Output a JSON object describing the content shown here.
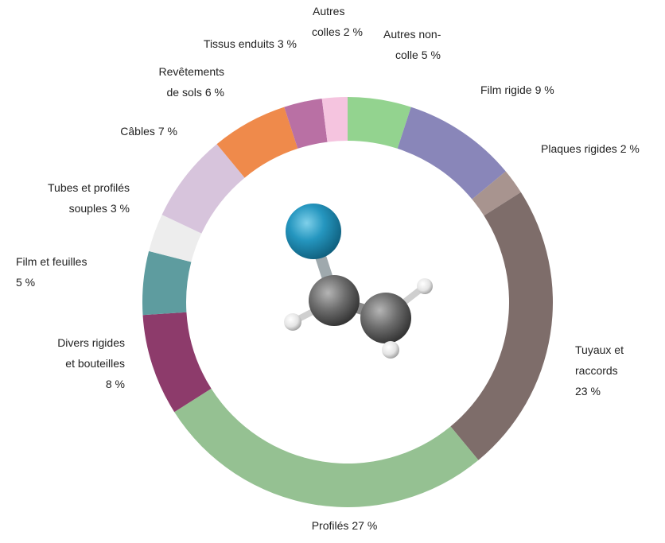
{
  "chart_data": {
    "type": "donut",
    "categories": [
      "Autres non-colle",
      "Film rigide",
      "Plaques rigides",
      "Tuyaux et raccords",
      "Profilés",
      "Divers rigides et bouteilles",
      "Film et feuilles",
      "Tubes et profilés souples",
      "Câbles",
      "Revêtements de sols",
      "Tissus enduits",
      "Autres colles"
    ],
    "values": [
      5,
      9,
      2,
      23,
      27,
      8,
      5,
      3,
      7,
      6,
      3,
      2
    ],
    "value_labels": [
      "5 %",
      "9 %",
      "2 %",
      "23 %",
      "27 %",
      "8 %",
      "5 %",
      "3 %",
      "7 %",
      "6 %",
      "3 %",
      "2 %"
    ],
    "colors": [
      "#93d38f",
      "#8986b9",
      "#a8948f",
      "#7e6d6a",
      "#95c192",
      "#8d3b6b",
      "#5e9c9f",
      "#ededed",
      "#d7c4dc",
      "#ef8a4b",
      "#b970a4",
      "#f5c4df"
    ]
  }
}
